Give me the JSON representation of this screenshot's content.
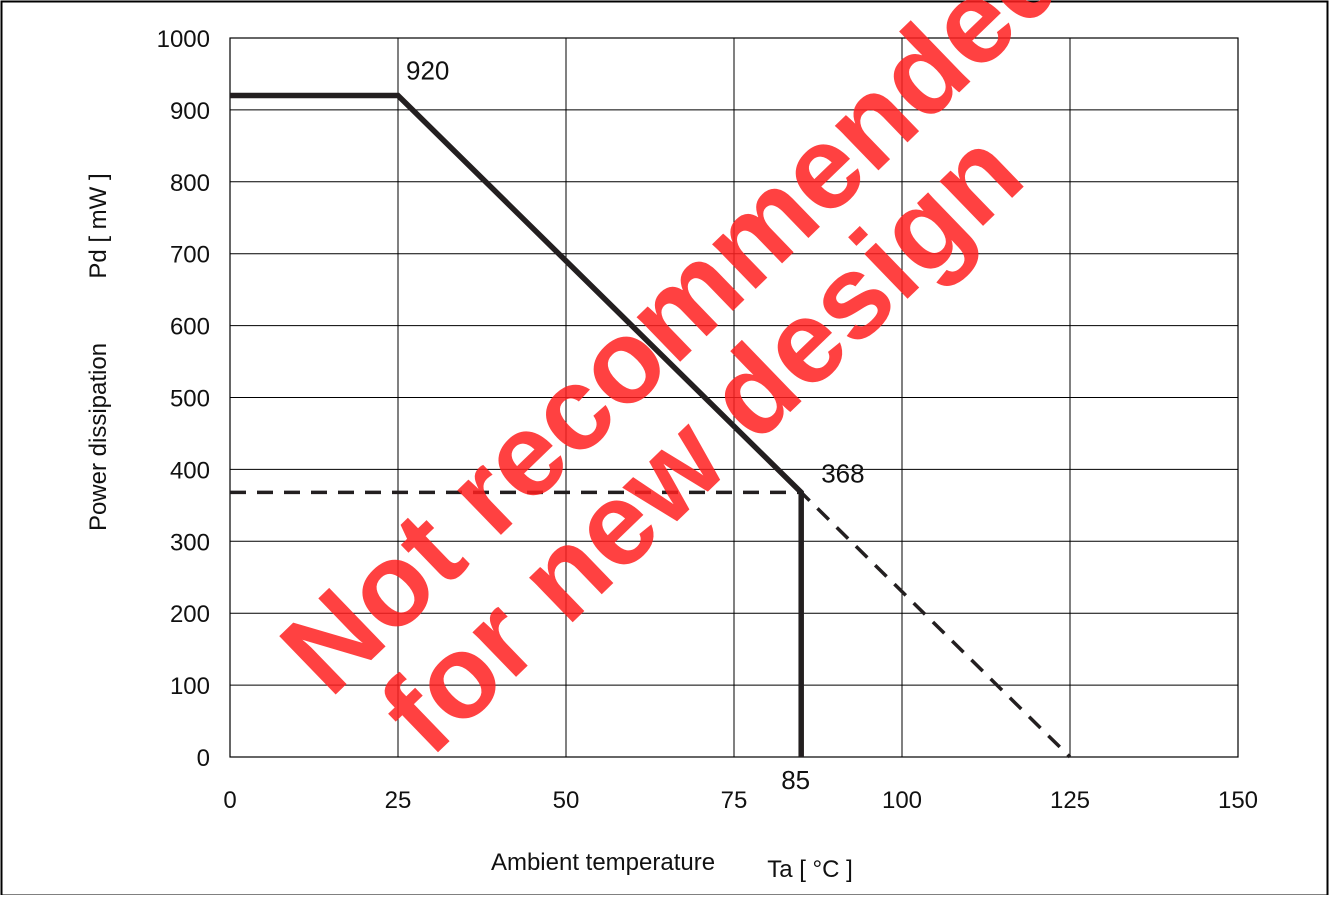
{
  "chart_data": {
    "type": "line",
    "title": "",
    "xlabel": "Ambient temperature",
    "xlabel_symbol": "Ta [ °C ]",
    "ylabel": "Power dissipation",
    "ylabel_symbol": "Pd [ mW ]",
    "xlim": [
      0,
      150
    ],
    "ylim": [
      0,
      1000
    ],
    "grid": true,
    "x_ticks": [
      0,
      25,
      50,
      75,
      100,
      125,
      150
    ],
    "x_tick_labels": [
      "0",
      "25",
      "50",
      "75",
      "100",
      "125",
      "150"
    ],
    "y_ticks": [
      0,
      100,
      200,
      300,
      400,
      500,
      600,
      700,
      800,
      900,
      1000
    ],
    "y_tick_labels": [
      "0",
      "100",
      "200",
      "300",
      "400",
      "500",
      "600",
      "700",
      "800",
      "900",
      "1000"
    ],
    "series": [
      {
        "style": "solid",
        "color": "#231f20",
        "x": [
          0,
          25,
          85,
          85
        ],
        "y": [
          920,
          920,
          368,
          0
        ]
      },
      {
        "style": "dashed",
        "color": "#231f20",
        "x": [
          0,
          85,
          125
        ],
        "y": [
          368,
          368,
          0
        ]
      }
    ],
    "annotations": [
      {
        "text": "920",
        "x": 25,
        "y": 920
      },
      {
        "text": "368",
        "x": 85,
        "y": 368
      },
      {
        "text": "85",
        "x": 85,
        "y": 0
      }
    ]
  },
  "watermark": {
    "line1": "Not recommended",
    "line2": "for new design",
    "color": "#ff2020"
  }
}
